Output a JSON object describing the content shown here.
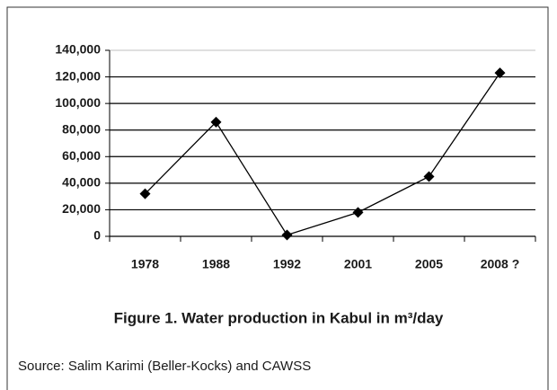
{
  "chart_data": {
    "type": "line",
    "title": "Figure 1. Water production in Kabul in m³/day",
    "source": "Source: Salim Karimi (Beller-Kocks) and CAWSS",
    "categories": [
      "1978",
      "1988",
      "1992",
      "2001",
      "2005",
      "2008 ?"
    ],
    "series": [
      {
        "color": "#000000",
        "values": [
          32000,
          86000,
          1000,
          18000,
          45000,
          123000
        ]
      }
    ],
    "ylim": [
      0,
      140000
    ],
    "yticks": [
      0,
      {
        "value": 20000,
        "label": "20,000"
      },
      {
        "value": 40000,
        "label": "40,000"
      },
      {
        "value": 60000,
        "label": "60,000"
      },
      {
        "value": 80000,
        "label": "80,000"
      },
      {
        "value": 100000,
        "label": "100,000"
      },
      {
        "value": 120000,
        "label": "120,000"
      },
      {
        "value": 140000,
        "label": "140,000"
      }
    ],
    "grid": true
  }
}
